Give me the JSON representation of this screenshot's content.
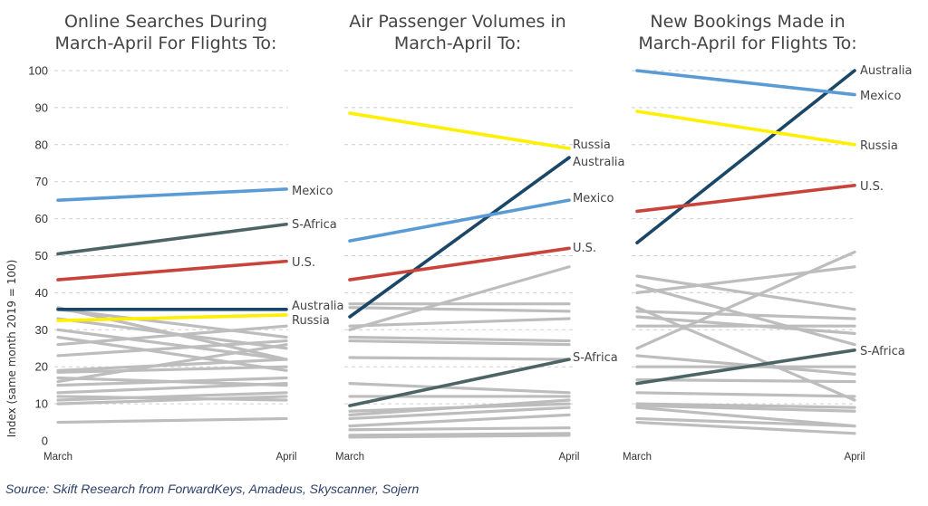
{
  "colors": {
    "background_lines": "#bdbdbd",
    "Mexico": "#5b9bd5",
    "S-Africa": "#4d6465",
    "U.S.": "#c9433a",
    "Australia": "#1a4768",
    "Russia": "#ffef00"
  },
  "y_axis": {
    "label": "Index (same month 2019 = 100)",
    "ticks": [
      "0",
      "10",
      "20",
      "30",
      "40",
      "50",
      "60",
      "70",
      "80",
      "90",
      "100"
    ]
  },
  "source": "Source: Skift Research from ForwardKeys, Amadeus, Skyscanner, Sojern",
  "chart_data": [
    {
      "type": "line",
      "title": [
        "Online Searches During",
        "March-April For Flights To:"
      ],
      "x": [
        "March",
        "April"
      ],
      "ylim": [
        0,
        100
      ],
      "grid": true,
      "series": [
        {
          "name": "Mexico",
          "values": [
            65,
            68
          ]
        },
        {
          "name": "S-Africa",
          "values": [
            50.5,
            58.5
          ]
        },
        {
          "name": "U.S.",
          "values": [
            43.5,
            48.5
          ]
        },
        {
          "name": "Australia",
          "values": [
            35.5,
            35.5
          ]
        },
        {
          "name": "Russia",
          "values": [
            32.5,
            34
          ]
        }
      ],
      "background_series": [
        [
          36,
          22
        ],
        [
          35.5,
          28
        ],
        [
          33,
          25
        ],
        [
          30,
          22
        ],
        [
          28,
          19
        ],
        [
          26,
          31
        ],
        [
          23,
          27
        ],
        [
          19,
          22
        ],
        [
          18.5,
          20
        ],
        [
          17,
          15
        ],
        [
          16,
          26
        ],
        [
          15,
          17
        ],
        [
          13,
          15.5
        ],
        [
          12,
          11
        ],
        [
          11,
          13
        ],
        [
          10,
          12
        ],
        [
          5,
          6
        ]
      ]
    },
    {
      "type": "line",
      "title": [
        "Air Passenger Volumes in",
        "March-April To:"
      ],
      "x": [
        "March",
        "April"
      ],
      "ylim": [
        0,
        100
      ],
      "grid": true,
      "series": [
        {
          "name": "Russia",
          "values": [
            88.5,
            79
          ]
        },
        {
          "name": "Australia",
          "values": [
            33.5,
            76.5
          ]
        },
        {
          "name": "Mexico",
          "values": [
            54,
            65
          ]
        },
        {
          "name": "U.S.",
          "values": [
            43.5,
            52
          ]
        },
        {
          "name": "S-Africa",
          "values": [
            9.5,
            22
          ]
        }
      ],
      "background_series": [
        [
          30,
          47
        ],
        [
          37,
          37
        ],
        [
          36,
          35
        ],
        [
          31,
          33
        ],
        [
          28,
          27
        ],
        [
          27,
          26
        ],
        [
          22.5,
          22
        ],
        [
          15.5,
          13
        ],
        [
          12,
          12
        ],
        [
          8,
          10
        ],
        [
          7,
          11
        ],
        [
          6,
          9
        ],
        [
          4,
          7
        ],
        [
          3,
          3.5
        ],
        [
          1.5,
          2
        ],
        [
          1,
          1.5
        ]
      ]
    },
    {
      "type": "line",
      "title": [
        "New Bookings Made in",
        "March-April for Flights To:"
      ],
      "x": [
        "March",
        "April"
      ],
      "ylim": [
        0,
        100
      ],
      "grid": true,
      "series": [
        {
          "name": "Australia",
          "values": [
            53.5,
            100
          ]
        },
        {
          "name": "Mexico",
          "values": [
            100,
            93.5
          ]
        },
        {
          "name": "Russia",
          "values": [
            89,
            80
          ]
        },
        {
          "name": "U.S.",
          "values": [
            62,
            69
          ]
        },
        {
          "name": "S-Africa",
          "values": [
            15.5,
            24.5
          ]
        }
      ],
      "background_series": [
        [
          25,
          51
        ],
        [
          44.5,
          35.5
        ],
        [
          42,
          26
        ],
        [
          40,
          47
        ],
        [
          36,
          11
        ],
        [
          35,
          33
        ],
        [
          33.5,
          29
        ],
        [
          31,
          31
        ],
        [
          23,
          18
        ],
        [
          20,
          20
        ],
        [
          16.5,
          16
        ],
        [
          13,
          12
        ],
        [
          10,
          9
        ],
        [
          9.5,
          8
        ],
        [
          9,
          4
        ],
        [
          6,
          4
        ],
        [
          5,
          2
        ]
      ]
    }
  ]
}
